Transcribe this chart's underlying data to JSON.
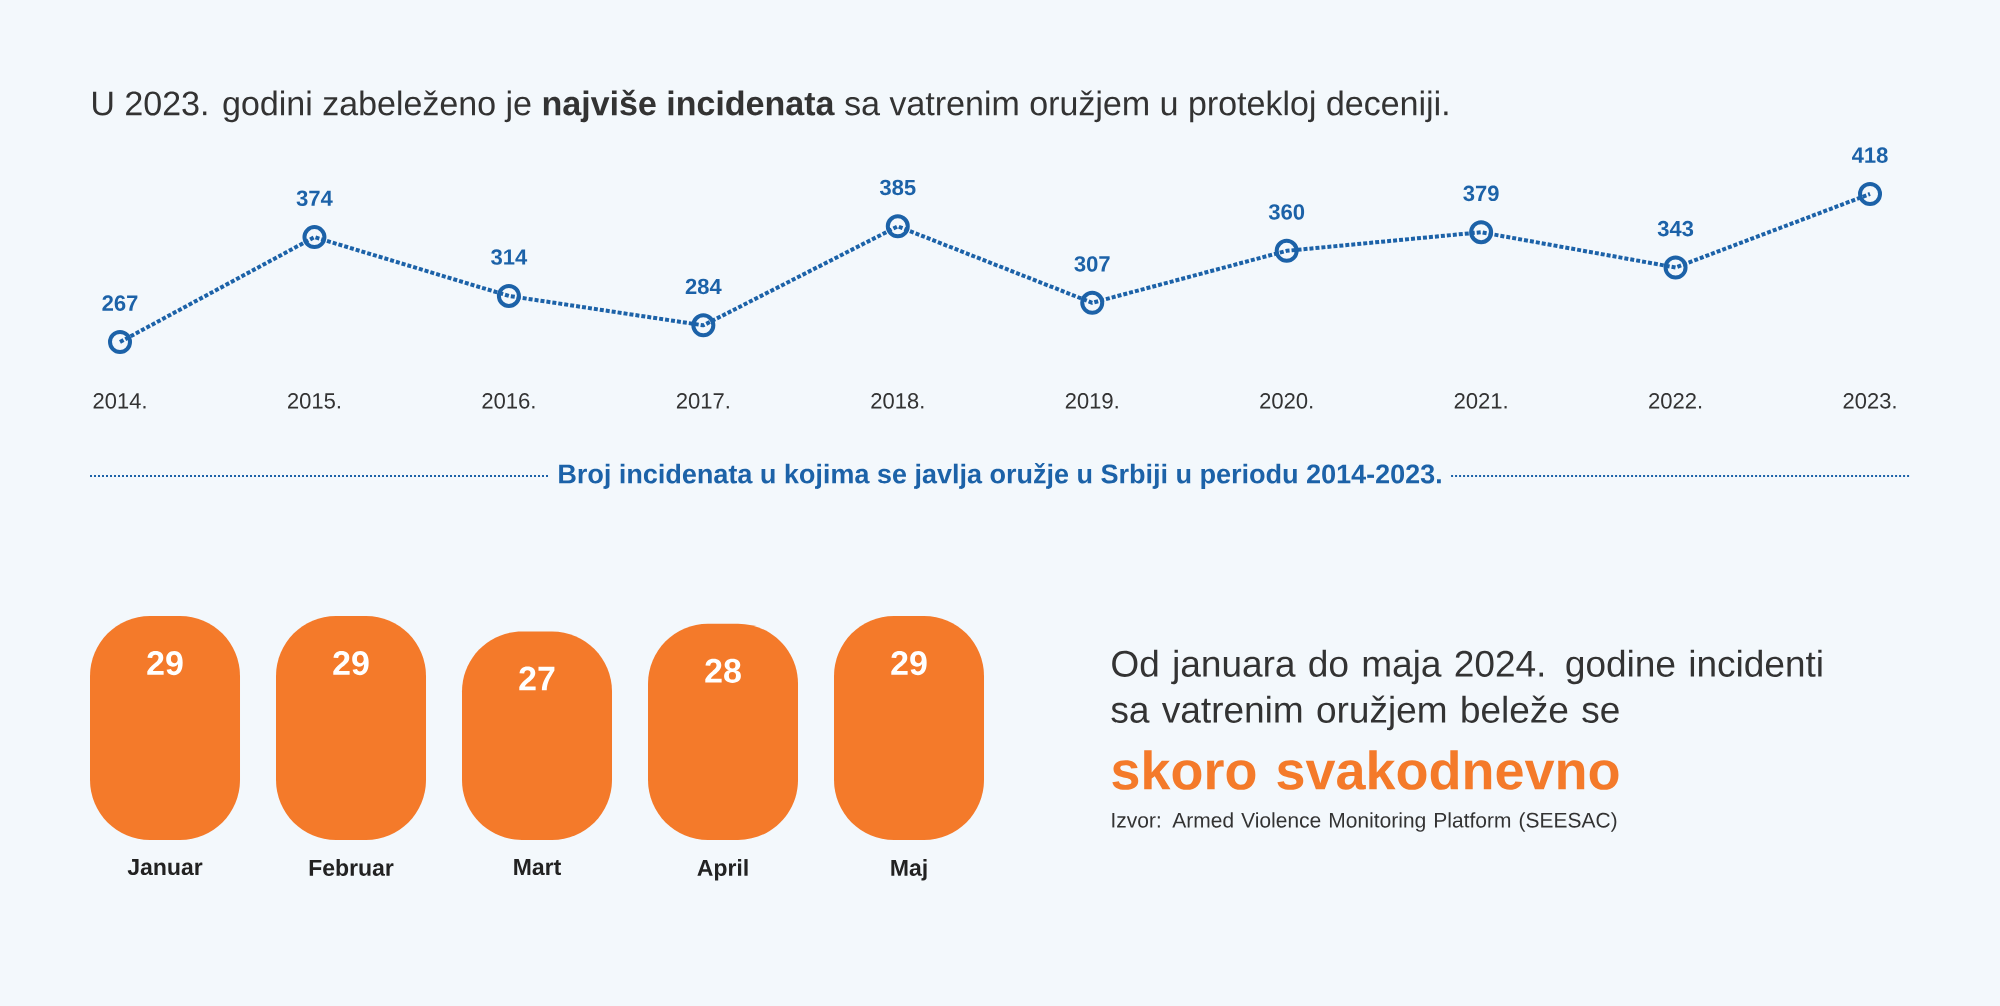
{
  "chart_data": [
    {
      "type": "line",
      "title": "U 2023. godini zabeleženo je **najviše incidenata** sa vatrenim oružjem u protekloj deceniji.",
      "xlabel": "Broj incidenata u kojima se javlja oružje u Srbiji u periodu 2014-2023.",
      "categories": [
        "2014.",
        "2015.",
        "2016.",
        "2017.",
        "2018.",
        "2019.",
        "2020.",
        "2021.",
        "2022.",
        "2023."
      ],
      "values": [
        267,
        374,
        314,
        284,
        385,
        307,
        360,
        379,
        343,
        418
      ],
      "color": "#1c62a8",
      "marker": "circle",
      "line_style": "dotted",
      "data_labels": true
    },
    {
      "type": "bar",
      "categories": [
        "Januar",
        "Februar",
        "Mart",
        "April",
        "Maj"
      ],
      "values": [
        29,
        29,
        27,
        28,
        29
      ],
      "color": "#f47a2a",
      "data_labels": true,
      "annotations": [
        "Od januara do maja 2024. godine incidenti sa vatrenim oružjem beleže se",
        "skoro svakodnevno",
        "Izvor: Armed Violence Monitoring Platform (SEESAC)"
      ]
    }
  ]
}
